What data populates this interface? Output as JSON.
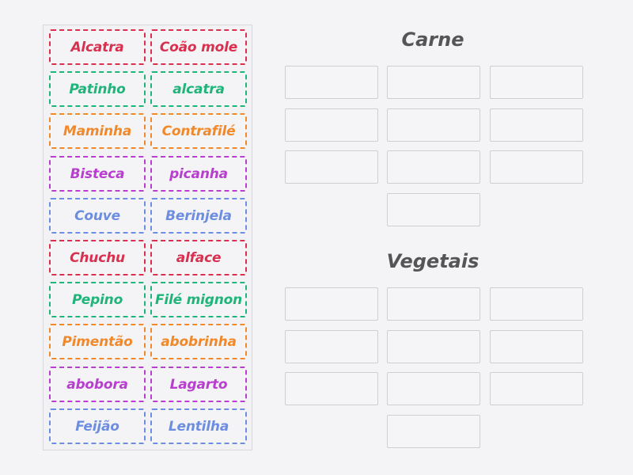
{
  "colors": {
    "red": "#d9304f",
    "green": "#1fb57a",
    "orange": "#f0892b",
    "purple": "#b83ecf",
    "blue": "#6d8ee0"
  },
  "cards": [
    {
      "label": "Alcatra",
      "color": "red"
    },
    {
      "label": "Coão mole",
      "color": "red"
    },
    {
      "label": "Patinho",
      "color": "green"
    },
    {
      "label": "alcatra",
      "color": "green"
    },
    {
      "label": "Maminha",
      "color": "orange"
    },
    {
      "label": "Contrafilé",
      "color": "orange"
    },
    {
      "label": "Bisteca",
      "color": "purple"
    },
    {
      "label": "picanha",
      "color": "purple"
    },
    {
      "label": "Couve",
      "color": "blue"
    },
    {
      "label": "Berinjela",
      "color": "blue"
    },
    {
      "label": "Chuchu",
      "color": "red"
    },
    {
      "label": "alface",
      "color": "red"
    },
    {
      "label": "Pepino",
      "color": "green"
    },
    {
      "label": "Filé mignon",
      "color": "green"
    },
    {
      "label": "Pimentão",
      "color": "orange"
    },
    {
      "label": "abobrinha",
      "color": "orange"
    },
    {
      "label": "abobora",
      "color": "purple"
    },
    {
      "label": "Lagarto",
      "color": "purple"
    },
    {
      "label": "Feijão",
      "color": "blue"
    },
    {
      "label": "Lentilha",
      "color": "blue"
    }
  ],
  "groups": [
    {
      "title": "Carne",
      "slot_count": 10
    },
    {
      "title": "Vegetais",
      "slot_count": 10
    }
  ]
}
